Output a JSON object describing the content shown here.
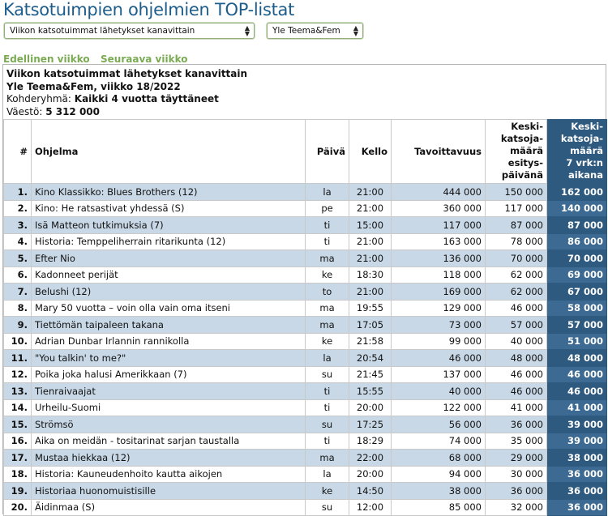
{
  "page_title": "Katsotuimpien ohjelmien TOP-listat",
  "selects": {
    "list_type": "Viikon katsotuimmat lähetykset kanavittain",
    "channel": "Yle Teema&Fem"
  },
  "nav": {
    "prev": "Edellinen viikko",
    "next": "Seuraava viikko"
  },
  "info": {
    "heading": "Viikon katsotuimmat lähetykset kanavittain",
    "channel_week": "Yle Teema&Fem, viikko 18/2022",
    "target_label": "Kohderyhmä:",
    "target_value": "Kaikki 4 vuotta täyttäneet",
    "population_label": "Väestö:",
    "population_value": "5 312 000"
  },
  "columns": {
    "rank": "#",
    "program": "Ohjelma",
    "day": "Päivä",
    "time": "Kello",
    "reach": "Tavoittavuus",
    "avg_day": [
      "Keski-",
      "katsoja-",
      "määrä",
      "esitys-",
      "päivänä"
    ],
    "avg_7d": [
      "Keski-",
      "katsoja-",
      "määrä",
      "7 vrk:n",
      "aikana"
    ]
  },
  "rows": [
    {
      "rank": "1.",
      "program": "Kino Klassikko: Blues Brothers (12)",
      "day": "la",
      "time": "21:00",
      "reach": "444 000",
      "avg_day": "150 000",
      "avg_7d": "162 000"
    },
    {
      "rank": "2.",
      "program": "Kino: He ratsastivat yhdessä (S)",
      "day": "pe",
      "time": "21:00",
      "reach": "360 000",
      "avg_day": "117 000",
      "avg_7d": "140 000"
    },
    {
      "rank": "3.",
      "program": "Isä Matteon tutkimuksia (7)",
      "day": "ti",
      "time": "15:00",
      "reach": "117 000",
      "avg_day": "87 000",
      "avg_7d": "87 000"
    },
    {
      "rank": "4.",
      "program": "Historia: Temppeliherrain ritarikunta (12)",
      "day": "ti",
      "time": "21:00",
      "reach": "163 000",
      "avg_day": "78 000",
      "avg_7d": "86 000"
    },
    {
      "rank": "5.",
      "program": "Efter Nio",
      "day": "ma",
      "time": "21:00",
      "reach": "136 000",
      "avg_day": "70 000",
      "avg_7d": "70 000"
    },
    {
      "rank": "6.",
      "program": "Kadonneet perijät",
      "day": "ke",
      "time": "18:30",
      "reach": "118 000",
      "avg_day": "62 000",
      "avg_7d": "69 000"
    },
    {
      "rank": "7.",
      "program": "Belushi (12)",
      "day": "to",
      "time": "21:00",
      "reach": "169 000",
      "avg_day": "62 000",
      "avg_7d": "67 000"
    },
    {
      "rank": "8.",
      "program": "Mary 50 vuotta – voin olla vain oma itseni",
      "day": "ma",
      "time": "19:55",
      "reach": "129 000",
      "avg_day": "46 000",
      "avg_7d": "58 000"
    },
    {
      "rank": "9.",
      "program": "Tiettömän taipaleen takana",
      "day": "ma",
      "time": "17:05",
      "reach": "73 000",
      "avg_day": "57 000",
      "avg_7d": "57 000"
    },
    {
      "rank": "10.",
      "program": "Adrian Dunbar Irlannin rannikolla",
      "day": "ke",
      "time": "21:58",
      "reach": "99 000",
      "avg_day": "40 000",
      "avg_7d": "51 000"
    },
    {
      "rank": "11.",
      "program": "\"You talkin' to me?\"",
      "day": "la",
      "time": "20:54",
      "reach": "46 000",
      "avg_day": "48 000",
      "avg_7d": "48 000"
    },
    {
      "rank": "12.",
      "program": "Poika joka halusi Amerikkaan (7)",
      "day": "su",
      "time": "21:45",
      "reach": "137 000",
      "avg_day": "46 000",
      "avg_7d": "46 000"
    },
    {
      "rank": "13.",
      "program": "Tienraivaajat",
      "day": "ti",
      "time": "15:55",
      "reach": "40 000",
      "avg_day": "46 000",
      "avg_7d": "46 000"
    },
    {
      "rank": "14.",
      "program": "Urheilu-Suomi",
      "day": "ti",
      "time": "20:00",
      "reach": "122 000",
      "avg_day": "41 000",
      "avg_7d": "41 000"
    },
    {
      "rank": "15.",
      "program": "Strömsö",
      "day": "su",
      "time": "17:25",
      "reach": "56 000",
      "avg_day": "36 000",
      "avg_7d": "39 000"
    },
    {
      "rank": "16.",
      "program": "Aika on meidän - tositarinat sarjan taustalla",
      "day": "ti",
      "time": "18:29",
      "reach": "74 000",
      "avg_day": "35 000",
      "avg_7d": "39 000"
    },
    {
      "rank": "17.",
      "program": "Mustaa hiekkaa (12)",
      "day": "ma",
      "time": "22:00",
      "reach": "68 000",
      "avg_day": "29 000",
      "avg_7d": "38 000"
    },
    {
      "rank": "18.",
      "program": "Historia: Kauneudenhoito kautta aikojen",
      "day": "la",
      "time": "20:00",
      "reach": "94 000",
      "avg_day": "30 000",
      "avg_7d": "36 000"
    },
    {
      "rank": "19.",
      "program": "Historiaa huonomuistisille",
      "day": "ke",
      "time": "14:50",
      "reach": "38 000",
      "avg_day": "36 000",
      "avg_7d": "36 000"
    },
    {
      "rank": "20.",
      "program": "Äidinmaa (S)",
      "day": "su",
      "time": "12:00",
      "reach": "85 000",
      "avg_day": "32 000",
      "avg_7d": "36 000"
    }
  ]
}
